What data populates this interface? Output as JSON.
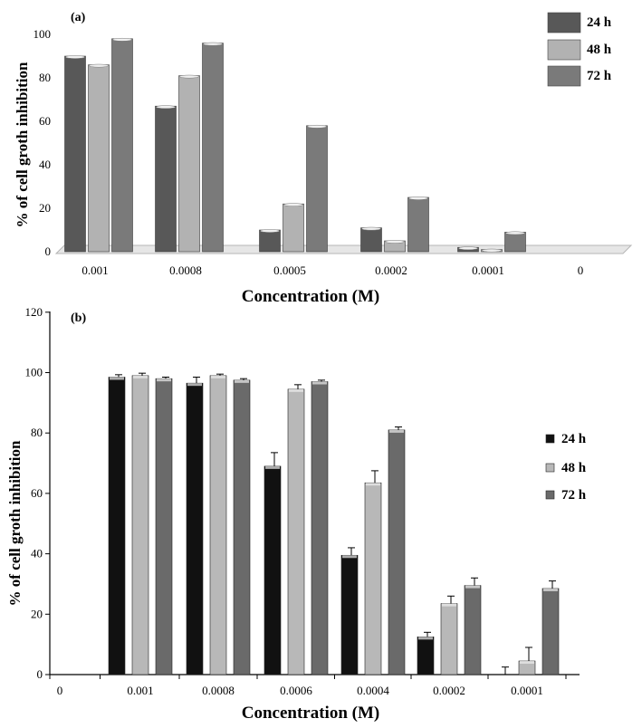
{
  "colors": {
    "a_24h": "#585858",
    "a_48h": "#b2b2b2",
    "a_72h": "#7a7a7a",
    "b_24h": "#111111",
    "b_48h": "#b8b8b8",
    "b_72h": "#6a6a6a"
  },
  "chart_data": [
    {
      "panel_label": "(a)",
      "type": "bar",
      "xlabel": "Concentration (M)",
      "ylabel": "% of cell groth inhibition",
      "ylim": [
        0,
        100
      ],
      "yticks": [
        0,
        20,
        40,
        60,
        80,
        100
      ],
      "categories": [
        "0.001",
        "0.0008",
        "0.0005",
        "0.0002",
        "0.0001",
        "0"
      ],
      "legend": {
        "position": "top-right",
        "entries": [
          "24 h",
          "48 h",
          "72 h"
        ]
      },
      "grid": false,
      "series": [
        {
          "name": "24 h",
          "values": [
            90,
            67,
            10,
            11,
            2,
            null
          ]
        },
        {
          "name": "48 h",
          "values": [
            86,
            81,
            22,
            5,
            1,
            null
          ]
        },
        {
          "name": "72 h",
          "values": [
            98,
            96,
            58,
            25,
            9,
            null
          ]
        }
      ]
    },
    {
      "panel_label": "(b)",
      "type": "bar",
      "xlabel": "Concentration (M)",
      "ylabel": "% of cell groth inhibition",
      "ylim": [
        0,
        120
      ],
      "yticks": [
        0,
        20,
        40,
        60,
        80,
        100,
        120
      ],
      "categories": [
        "0",
        "0.001",
        "0.0008",
        "0.0006",
        "0.0004",
        "0.0002",
        "0.0001"
      ],
      "legend": {
        "position": "right",
        "entries": [
          "24 h",
          "48 h",
          "72 h"
        ]
      },
      "grid": false,
      "series": [
        {
          "name": "24 h",
          "values": [
            null,
            98.5,
            96.5,
            69,
            39.5,
            12.5,
            0
          ],
          "errors": [
            null,
            0.8,
            2,
            4.5,
            2.5,
            1.5,
            2.5
          ]
        },
        {
          "name": "48 h",
          "values": [
            null,
            99,
            99,
            94.5,
            63.5,
            23.5,
            4.5
          ],
          "errors": [
            null,
            0.8,
            0.5,
            1.5,
            4,
            2.5,
            4.5
          ]
        },
        {
          "name": "72 h",
          "values": [
            null,
            98,
            97.5,
            97,
            81,
            29.5,
            28.5
          ],
          "errors": [
            null,
            0.5,
            0.5,
            0.5,
            1,
            2.5,
            2.5
          ]
        }
      ]
    }
  ]
}
